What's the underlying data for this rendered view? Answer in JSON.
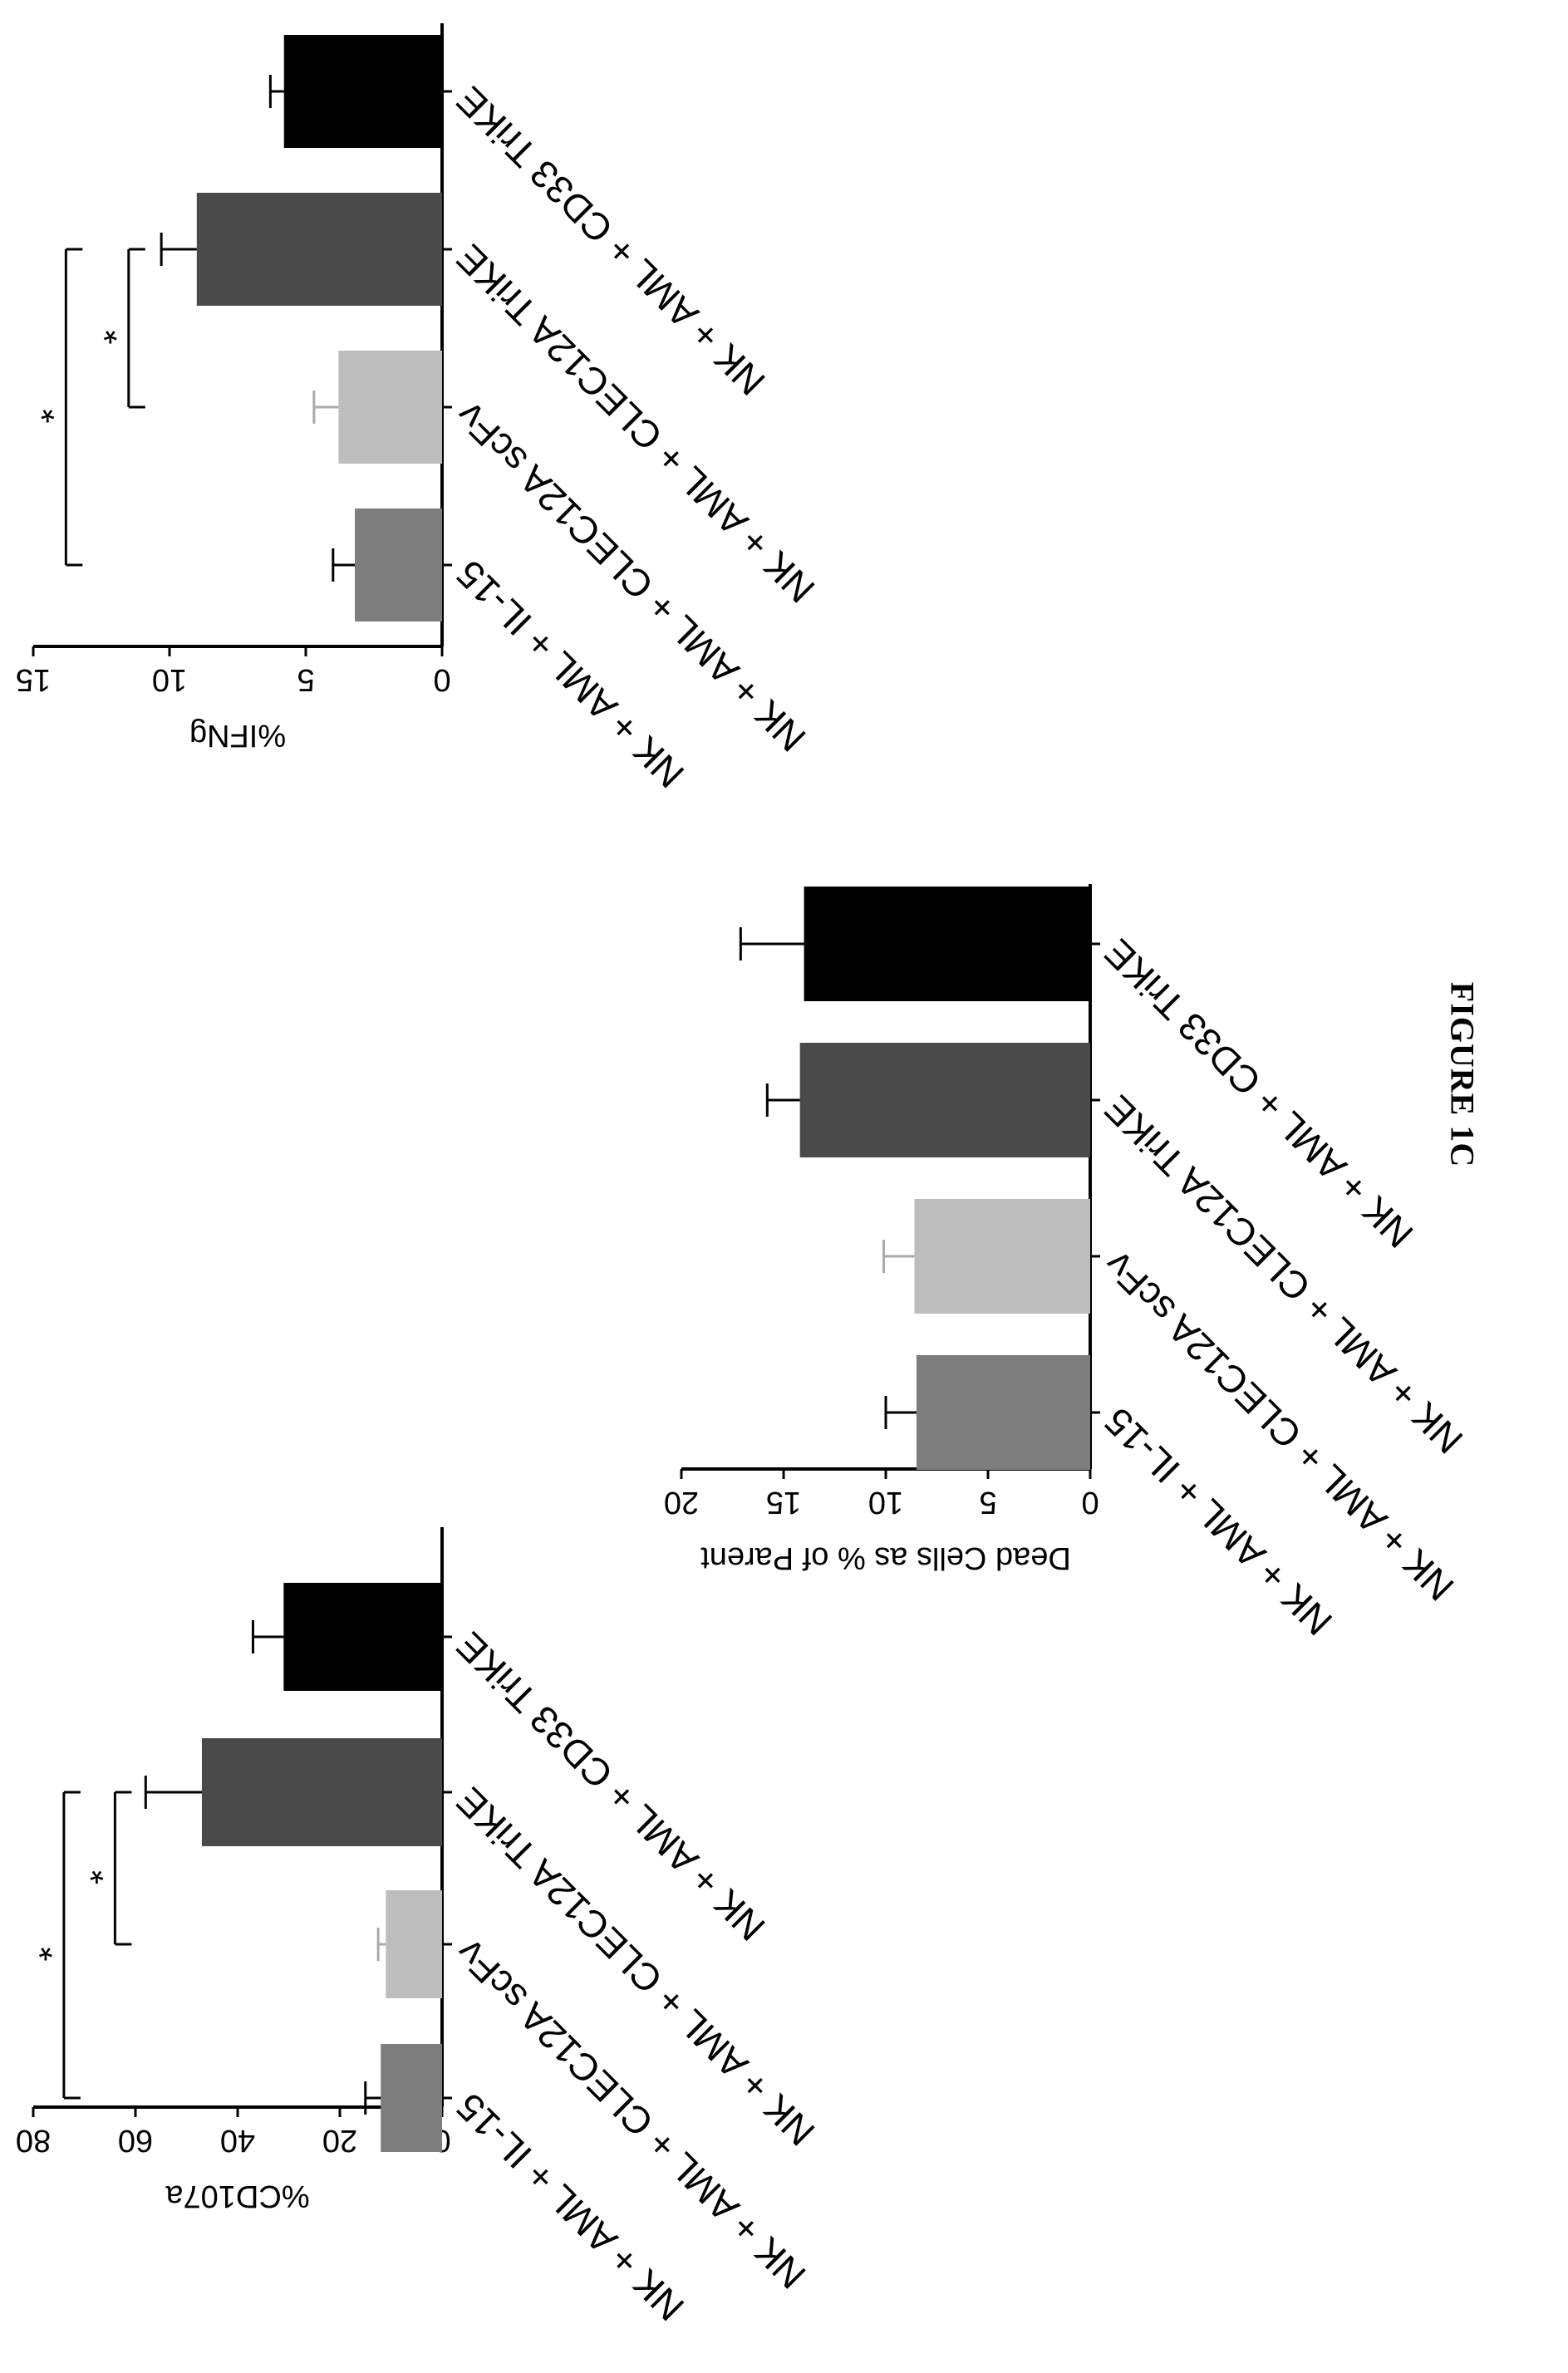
{
  "figure_caption": "FIGURE 1C",
  "chart_data": [
    {
      "type": "bar",
      "ylabel": "%CD107a",
      "ylim": [
        0,
        80
      ],
      "yticks": [
        0,
        20,
        40,
        60,
        80
      ],
      "categories": [
        "NK + AML + IL-15",
        "NK + AML + CLEC12A scFv",
        "NK + AML + CLEC12A TriKE",
        "NK + AML + CD33 TriKE"
      ],
      "values": [
        12,
        11,
        47,
        31
      ],
      "errors": [
        3,
        1.5,
        11,
        6
      ],
      "colors": [
        "#7d7d7d",
        "#bdbdbd",
        "#4a4a4a",
        "#000000"
      ],
      "significance": [
        {
          "from": 1,
          "to": 2,
          "y": 64,
          "label": "*"
        },
        {
          "from": 0,
          "to": 2,
          "y": 74,
          "label": "*"
        }
      ]
    },
    {
      "type": "bar",
      "ylabel": "Dead Cells as % of Parent",
      "ylim": [
        0,
        20
      ],
      "yticks": [
        0,
        5,
        10,
        15,
        20
      ],
      "categories": [
        "NK + AML + IL-15",
        "NK + AML + CLEC12A scFv",
        "NK + AML + CLEC12A TriKE",
        "NK + AML + CD33 TriKE"
      ],
      "values": [
        8.5,
        8.6,
        14.2,
        14
      ],
      "errors": [
        1.5,
        1.5,
        1.6,
        3.1
      ],
      "colors": [
        "#7d7d7d",
        "#bdbdbd",
        "#4a4a4a",
        "#000000"
      ],
      "significance": []
    },
    {
      "type": "bar",
      "ylabel": "%IFNg",
      "ylim": [
        0,
        15
      ],
      "yticks": [
        0,
        5,
        10,
        15
      ],
      "categories": [
        "NK + AML + IL-15",
        "NK + AML + CLEC12A scFv",
        "NK + AML + CLEC12A TriKE",
        "NK + AML + CD33 TriKE"
      ],
      "values": [
        3.2,
        3.8,
        9,
        5.8
      ],
      "errors": [
        0.8,
        0.9,
        1.3,
        0.5
      ],
      "colors": [
        "#7d7d7d",
        "#bdbdbd",
        "#4a4a4a",
        "#000000"
      ],
      "significance": [
        {
          "from": 1,
          "to": 2,
          "y": 11.5,
          "label": "*"
        },
        {
          "from": 0,
          "to": 2,
          "y": 13.8,
          "label": "*"
        }
      ]
    }
  ]
}
